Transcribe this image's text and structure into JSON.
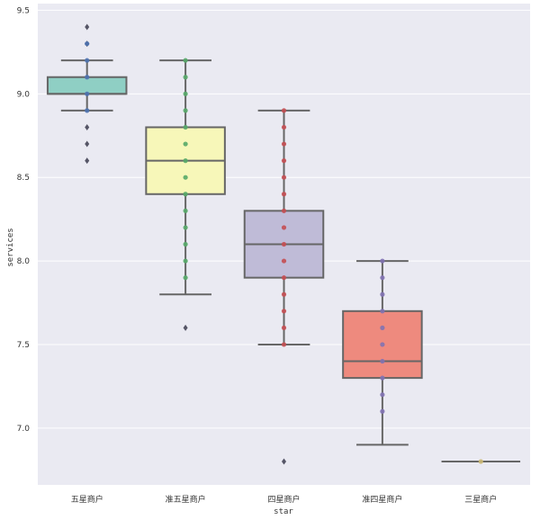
{
  "chart_data": {
    "type": "box",
    "title": "",
    "xlabel": "star",
    "ylabel": "services",
    "ylim": [
      6.66,
      9.54
    ],
    "yticks": [
      7.0,
      7.5,
      8.0,
      8.5,
      9.0,
      9.5
    ],
    "ytick_labels": [
      "7.0",
      "7.5",
      "8.0",
      "8.5",
      "9.0",
      "9.5"
    ],
    "grid": true,
    "categories": [
      "五星商户",
      "准五星商户",
      "四星商户",
      "准四星商户",
      "三星商户"
    ],
    "boxes": [
      {
        "category": "五星商户",
        "whisker_low": 8.9,
        "q1": 9.0,
        "median": 9.0,
        "q3": 9.1,
        "whisker_high": 9.2,
        "outliers": [
          9.4,
          9.3,
          8.8,
          8.7,
          8.6
        ],
        "box_color": "#8fcfc4",
        "point_color": "#4c72b0",
        "points": [
          9.3,
          9.2,
          9.1,
          9.0,
          8.9
        ]
      },
      {
        "category": "准五星商户",
        "whisker_low": 7.8,
        "q1": 8.4,
        "median": 8.6,
        "q3": 8.8,
        "whisker_high": 9.2,
        "outliers": [
          7.6
        ],
        "box_color": "#f7f7b9",
        "point_color": "#55a868",
        "points": [
          9.2,
          9.1,
          9.0,
          8.9,
          8.8,
          8.7,
          8.6,
          8.5,
          8.4,
          8.3,
          8.2,
          8.1,
          8.0,
          7.9
        ]
      },
      {
        "category": "四星商户",
        "whisker_low": 7.5,
        "q1": 7.9,
        "median": 8.1,
        "q3": 8.3,
        "whisker_high": 8.9,
        "outliers": [
          6.8
        ],
        "box_color": "#bfbbd7",
        "point_color": "#c44e52",
        "points": [
          8.9,
          8.8,
          8.7,
          8.6,
          8.5,
          8.4,
          8.3,
          8.2,
          8.1,
          8.0,
          7.9,
          7.8,
          7.7,
          7.6,
          7.5
        ]
      },
      {
        "category": "准四星商户",
        "whisker_low": 6.9,
        "q1": 7.3,
        "median": 7.4,
        "q3": 7.7,
        "whisker_high": 8.0,
        "outliers": [],
        "box_color": "#ee8a7e",
        "point_color": "#8172b2",
        "points": [
          8.0,
          7.9,
          7.8,
          7.7,
          7.6,
          7.5,
          7.4,
          7.3,
          7.2,
          7.1
        ]
      },
      {
        "category": "三星商户",
        "whisker_low": 6.8,
        "q1": 6.8,
        "median": 6.8,
        "q3": 6.8,
        "whisker_high": 6.8,
        "outliers": [],
        "box_color": "#8fcfc4",
        "point_color": "#ccb974",
        "points": [
          6.8
        ]
      }
    ]
  }
}
